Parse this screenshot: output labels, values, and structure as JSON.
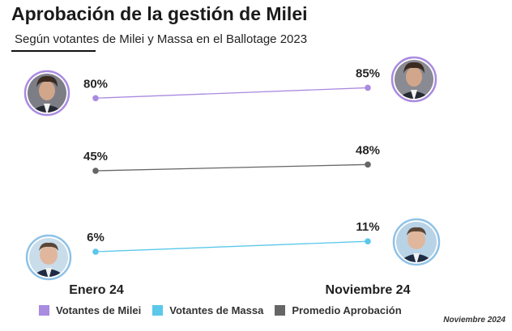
{
  "header": {
    "title": "Aprobación de la gestión de Milei",
    "subtitle": "Según votantes de Milei y Massa en el Ballotage 2023"
  },
  "chart_data": {
    "type": "line",
    "title": "Aprobación de la gestión de Milei",
    "subtitle": "Según votantes de Milei y Massa en el Ballotage 2023",
    "categories": [
      "Enero 24",
      "Noviembre 24"
    ],
    "series": [
      {
        "name": "Votantes de Milei",
        "values": [
          80,
          85
        ],
        "labels": [
          "80%",
          "85%"
        ],
        "color": "#a98be0"
      },
      {
        "name": "Promedio Aprobación",
        "values": [
          45,
          48
        ],
        "labels": [
          "45%",
          "48%"
        ],
        "color": "#666666"
      },
      {
        "name": "Votantes de Massa",
        "values": [
          6,
          11
        ],
        "labels": [
          "6%",
          "11%"
        ],
        "color": "#5bc8ea"
      }
    ],
    "legend_position": "bottom",
    "grid": false,
    "note": "Noviembre 2024"
  },
  "legend": {
    "items": [
      {
        "label": "Votantes de Milei",
        "color": "#a98be0"
      },
      {
        "label": "Votantes de Massa",
        "color": "#5bc8ea"
      },
      {
        "label": "Promedio Aprobación",
        "color": "#666666"
      }
    ]
  },
  "footer": {
    "note": "Noviembre 2024"
  },
  "avatars": {
    "milei": {
      "ring_color": "#a98be0"
    },
    "massa": {
      "ring_color": "#8fc2e6"
    }
  }
}
